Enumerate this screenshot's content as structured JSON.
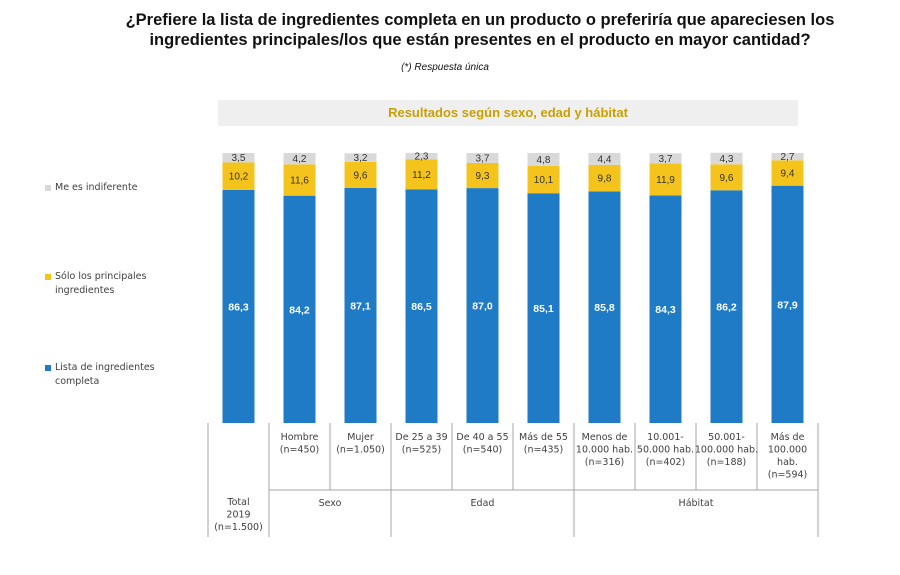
{
  "title_line1": "¿Prefiere la lista de ingredientes completa en un producto o preferiría que apareciesen los",
  "title_line2": "ingredientes principales/los que están presentes en el producto en mayor cantidad?",
  "subtitle": "(*) Respuesta única",
  "banner": "Resultados según sexo, edad y hábitat",
  "colors": {
    "lista": "#1f7bc6",
    "solo": "#f5c41c",
    "indiferente": "#d9d9d9"
  },
  "chart_data": {
    "type": "bar",
    "stacked": true,
    "unit": "%",
    "categories": [
      [
        "Total",
        "2019",
        "(n=1.500)"
      ],
      [
        "Hombre",
        "(n=450)"
      ],
      [
        "Mujer",
        "(n=1.050)"
      ],
      [
        "De 25 a 39",
        "(n=525)"
      ],
      [
        "De 40 a 55",
        "(n=540)"
      ],
      [
        "Más de 55",
        "(n=435)"
      ],
      [
        "Menos de",
        "10.000 hab.",
        "(n=316)"
      ],
      [
        "10.001-",
        "50.000 hab.",
        "(n=402)"
      ],
      [
        "50.001-",
        "100.000 hab.",
        "(n=188)"
      ],
      [
        "Más de",
        "100.000",
        "hab.",
        "(n=594)"
      ]
    ],
    "groups": [
      {
        "label": "Sexo",
        "start": 1,
        "end": 2
      },
      {
        "label": "Edad",
        "start": 3,
        "end": 5
      },
      {
        "label": "Hábitat",
        "start": 6,
        "end": 9
      }
    ],
    "series": [
      {
        "name": "Lista de ingredientes completa",
        "color": "#1f7bc6",
        "label_color": "#ffffff",
        "values": [
          86.3,
          84.2,
          87.1,
          86.5,
          87.0,
          85.1,
          85.8,
          84.3,
          86.2,
          87.9
        ],
        "labels": [
          "86,3",
          "84,2",
          "87,1",
          "86,5",
          "87,0",
          "85,1",
          "85,8",
          "84,3",
          "86,2",
          "87,9"
        ]
      },
      {
        "name": "Sólo los principales ingredientes",
        "color": "#f5c41c",
        "label_color": "#333333",
        "values": [
          10.2,
          11.6,
          9.6,
          11.2,
          9.3,
          10.1,
          9.8,
          11.9,
          9.6,
          9.4
        ],
        "labels": [
          "10,2",
          "11,6",
          "9,6",
          "11,2",
          "9,3",
          "10,1",
          "9,8",
          "11,9",
          "9,6",
          "9,4"
        ]
      },
      {
        "name": "Me es indiferente",
        "color": "#d9d9d9",
        "label_color": "#333333",
        "values": [
          3.5,
          4.2,
          3.2,
          2.3,
          3.7,
          4.8,
          4.4,
          3.7,
          4.3,
          2.7
        ],
        "labels": [
          "3,5",
          "4,2",
          "3,2",
          "2,3",
          "3,7",
          "4,8",
          "4,4",
          "3,7",
          "4,3",
          "2,7"
        ]
      }
    ],
    "legend": [
      {
        "label": "Me es indiferente",
        "color": "#d9d9d9"
      },
      {
        "label": "Sólo los principales ingredientes",
        "color": "#f5c41c"
      },
      {
        "label": "Lista de ingredientes completa",
        "color": "#1f7bc6"
      }
    ],
    "ylim": [
      0,
      100
    ]
  }
}
